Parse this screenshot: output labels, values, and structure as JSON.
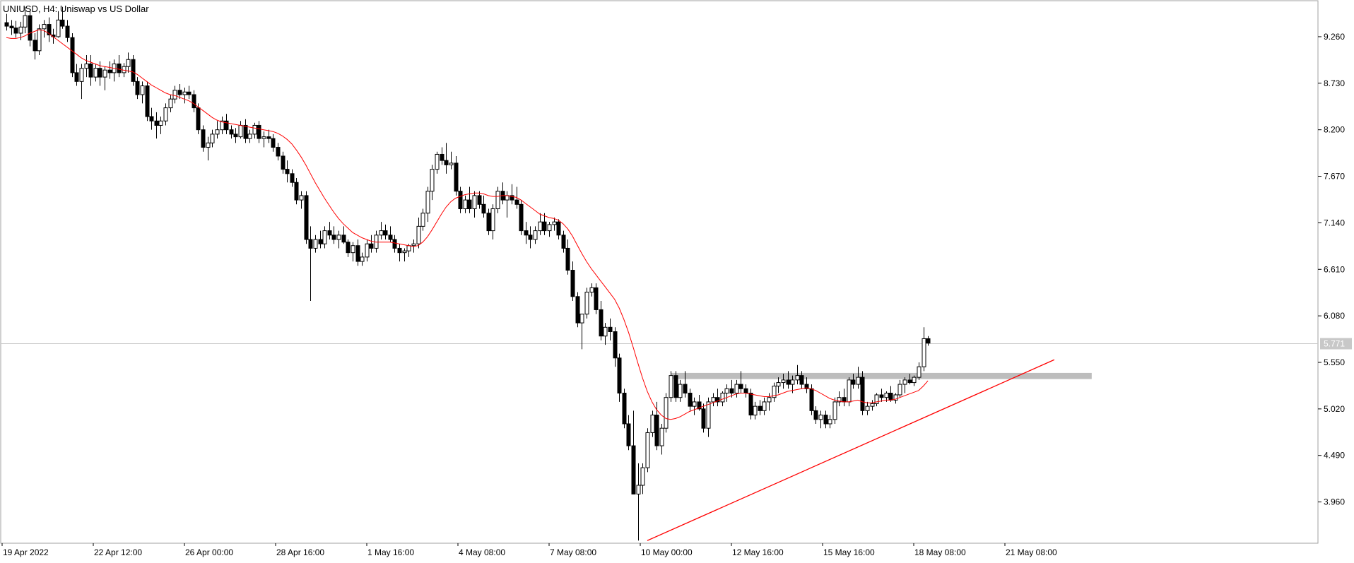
{
  "header": {
    "symbol_label": "UNIUSD, H4:  Uniswap vs US Dollar"
  },
  "price_tag": {
    "value": "5.771",
    "background": "#c8c8c8"
  },
  "colors": {
    "bull_body": "#ffffff",
    "bear_body": "#000000",
    "candle_outline": "#000000",
    "moving_average": "#ff0000",
    "trendline": "#ff0000",
    "resistance_zone": "#bdbdbd",
    "price_line": "#c8c8c8"
  },
  "chart_data": {
    "type": "candlestick",
    "title": "UNIUSD, H4:  Uniswap vs US Dollar",
    "ylim": [
      3.49,
      9.67
    ],
    "y_ticks": [
      "9.260",
      "8.730",
      "8.200",
      "7.670",
      "7.140",
      "6.610",
      "6.080",
      "5.550",
      "5.020",
      "4.490",
      "3.960"
    ],
    "x_ticks": [
      "19 Apr 2022",
      "22 Apr 12:00",
      "26 Apr 00:00",
      "28 Apr 16:00",
      "1 May 16:00",
      "4 May 08:00",
      "7 May 08:00",
      "10 May 00:00",
      "12 May 16:00",
      "15 May 16:00",
      "18 May 08:00",
      "21 May 08:00"
    ],
    "last_price": 5.771,
    "grid": false,
    "candles": [
      [
        9.42,
        9.52,
        9.33,
        9.38
      ],
      [
        9.38,
        9.45,
        9.28,
        9.36
      ],
      [
        9.36,
        9.44,
        9.25,
        9.3
      ],
      [
        9.3,
        9.43,
        9.22,
        9.37
      ],
      [
        9.37,
        9.6,
        9.3,
        9.5
      ],
      [
        9.5,
        9.55,
        9.15,
        9.22
      ],
      [
        9.22,
        9.3,
        9.0,
        9.1
      ],
      [
        9.1,
        9.4,
        9.05,
        9.35
      ],
      [
        9.35,
        9.45,
        9.25,
        9.4
      ],
      [
        9.4,
        9.48,
        9.2,
        9.28
      ],
      [
        9.28,
        9.35,
        9.18,
        9.26
      ],
      [
        9.26,
        9.55,
        9.25,
        9.45
      ],
      [
        9.45,
        9.6,
        9.35,
        9.38
      ],
      [
        9.38,
        9.45,
        9.2,
        9.25
      ],
      [
        9.25,
        9.3,
        8.8,
        8.85
      ],
      [
        8.85,
        8.95,
        8.7,
        8.75
      ],
      [
        8.75,
        8.95,
        8.55,
        8.9
      ],
      [
        8.9,
        9.05,
        8.8,
        8.95
      ],
      [
        8.95,
        9.05,
        8.7,
        8.8
      ],
      [
        8.8,
        8.95,
        8.75,
        8.9
      ],
      [
        8.9,
        8.98,
        8.7,
        8.8
      ],
      [
        8.8,
        8.92,
        8.65,
        8.88
      ],
      [
        8.88,
        8.98,
        8.78,
        8.85
      ],
      [
        8.85,
        9.0,
        8.75,
        8.95
      ],
      [
        8.95,
        9.05,
        8.8,
        8.85
      ],
      [
        8.85,
        8.96,
        8.8,
        8.92
      ],
      [
        8.92,
        9.08,
        8.85,
        9.0
      ],
      [
        9.0,
        9.05,
        8.7,
        8.75
      ],
      [
        8.75,
        8.8,
        8.55,
        8.6
      ],
      [
        8.6,
        8.75,
        8.5,
        8.7
      ],
      [
        8.7,
        8.75,
        8.3,
        8.35
      ],
      [
        8.35,
        8.45,
        8.2,
        8.3
      ],
      [
        8.3,
        8.4,
        8.1,
        8.25
      ],
      [
        8.25,
        8.35,
        8.15,
        8.3
      ],
      [
        8.3,
        8.5,
        8.25,
        8.45
      ],
      [
        8.45,
        8.6,
        8.4,
        8.55
      ],
      [
        8.55,
        8.7,
        8.5,
        8.65
      ],
      [
        8.65,
        8.72,
        8.55,
        8.6
      ],
      [
        8.6,
        8.68,
        8.5,
        8.63
      ],
      [
        8.63,
        8.7,
        8.55,
        8.6
      ],
      [
        8.6,
        8.65,
        8.4,
        8.45
      ],
      [
        8.45,
        8.5,
        8.15,
        8.2
      ],
      [
        8.2,
        8.25,
        7.95,
        8.0
      ],
      [
        8.0,
        8.12,
        7.85,
        8.05
      ],
      [
        8.05,
        8.2,
        8.0,
        8.15
      ],
      [
        8.15,
        8.3,
        8.1,
        8.2
      ],
      [
        8.2,
        8.35,
        8.15,
        8.3
      ],
      [
        8.3,
        8.38,
        8.15,
        8.2
      ],
      [
        8.2,
        8.25,
        8.1,
        8.15
      ],
      [
        8.15,
        8.22,
        8.05,
        8.12
      ],
      [
        8.12,
        8.3,
        8.1,
        8.25
      ],
      [
        8.25,
        8.32,
        8.05,
        8.1
      ],
      [
        8.1,
        8.2,
        8.05,
        8.15
      ],
      [
        8.15,
        8.28,
        8.1,
        8.25
      ],
      [
        8.25,
        8.3,
        8.05,
        8.1
      ],
      [
        8.1,
        8.18,
        8.0,
        8.12
      ],
      [
        8.12,
        8.2,
        8.05,
        8.1
      ],
      [
        8.1,
        8.15,
        7.95,
        8.0
      ],
      [
        8.0,
        8.05,
        7.85,
        7.9
      ],
      [
        7.9,
        7.95,
        7.7,
        7.75
      ],
      [
        7.75,
        7.85,
        7.6,
        7.7
      ],
      [
        7.7,
        7.75,
        7.55,
        7.6
      ],
      [
        7.6,
        7.65,
        7.35,
        7.4
      ],
      [
        7.4,
        7.5,
        7.3,
        7.45
      ],
      [
        7.45,
        7.5,
        6.9,
        6.95
      ],
      [
        6.95,
        7.1,
        6.25,
        6.85
      ],
      [
        6.85,
        7.0,
        6.8,
        6.95
      ],
      [
        6.95,
        7.05,
        6.85,
        6.9
      ],
      [
        6.9,
        7.1,
        6.85,
        7.05
      ],
      [
        7.05,
        7.15,
        6.95,
        7.0
      ],
      [
        7.0,
        7.1,
        6.9,
        6.95
      ],
      [
        6.95,
        7.05,
        6.85,
        7.0
      ],
      [
        7.0,
        7.1,
        6.9,
        6.92
      ],
      [
        6.92,
        6.95,
        6.75,
        6.8
      ],
      [
        6.8,
        6.92,
        6.7,
        6.88
      ],
      [
        6.88,
        6.95,
        6.65,
        6.7
      ],
      [
        6.7,
        6.8,
        6.65,
        6.75
      ],
      [
        6.75,
        6.95,
        6.7,
        6.9
      ],
      [
        6.9,
        7.0,
        6.8,
        6.85
      ],
      [
        6.85,
        7.05,
        6.8,
        7.0
      ],
      [
        7.0,
        7.15,
        6.95,
        7.05
      ],
      [
        7.05,
        7.12,
        6.95,
        7.0
      ],
      [
        7.0,
        7.1,
        6.92,
        6.95
      ],
      [
        6.95,
        7.0,
        6.8,
        6.85
      ],
      [
        6.85,
        6.9,
        6.7,
        6.8
      ],
      [
        6.8,
        6.85,
        6.7,
        6.82
      ],
      [
        6.82,
        6.9,
        6.75,
        6.88
      ],
      [
        6.88,
        6.95,
        6.8,
        6.9
      ],
      [
        6.9,
        7.2,
        6.85,
        7.1
      ],
      [
        7.1,
        7.3,
        7.05,
        7.25
      ],
      [
        7.25,
        7.55,
        7.15,
        7.5
      ],
      [
        7.5,
        7.8,
        7.4,
        7.75
      ],
      [
        7.75,
        7.95,
        7.7,
        7.92
      ],
      [
        7.92,
        8.0,
        7.8,
        7.85
      ],
      [
        7.85,
        8.05,
        7.7,
        7.8
      ],
      [
        7.8,
        7.95,
        7.75,
        7.82
      ],
      [
        7.82,
        7.9,
        7.45,
        7.5
      ],
      [
        7.5,
        7.55,
        7.25,
        7.3
      ],
      [
        7.3,
        7.45,
        7.25,
        7.4
      ],
      [
        7.4,
        7.55,
        7.25,
        7.3
      ],
      [
        7.3,
        7.5,
        7.2,
        7.45
      ],
      [
        7.45,
        7.5,
        7.3,
        7.35
      ],
      [
        7.35,
        7.45,
        7.2,
        7.25
      ],
      [
        7.25,
        7.3,
        7.0,
        7.05
      ],
      [
        7.05,
        7.35,
        6.95,
        7.3
      ],
      [
        7.3,
        7.55,
        7.25,
        7.5
      ],
      [
        7.5,
        7.6,
        7.35,
        7.4
      ],
      [
        7.4,
        7.5,
        7.2,
        7.45
      ],
      [
        7.45,
        7.58,
        7.35,
        7.4
      ],
      [
        7.4,
        7.55,
        7.3,
        7.35
      ],
      [
        7.35,
        7.4,
        7.0,
        7.05
      ],
      [
        7.05,
        7.15,
        6.9,
        7.0
      ],
      [
        7.0,
        7.1,
        6.85,
        6.95
      ],
      [
        6.95,
        7.1,
        6.9,
        7.05
      ],
      [
        7.05,
        7.25,
        7.0,
        7.15
      ],
      [
        7.15,
        7.25,
        7.0,
        7.05
      ],
      [
        7.05,
        7.15,
        6.98,
        7.12
      ],
      [
        7.12,
        7.2,
        7.05,
        7.15
      ],
      [
        7.15,
        7.18,
        6.95,
        7.0
      ],
      [
        7.0,
        7.05,
        6.8,
        6.85
      ],
      [
        6.85,
        6.95,
        6.55,
        6.6
      ],
      [
        6.6,
        6.7,
        6.25,
        6.3
      ],
      [
        6.3,
        6.35,
        5.95,
        6.0
      ],
      [
        6.0,
        6.05,
        5.7,
        6.1
      ],
      [
        6.1,
        6.4,
        6.05,
        6.35
      ],
      [
        6.35,
        6.45,
        6.3,
        6.4
      ],
      [
        6.4,
        6.45,
        6.1,
        6.15
      ],
      [
        6.15,
        6.25,
        5.8,
        5.85
      ],
      [
        5.85,
        6.0,
        5.75,
        5.95
      ],
      [
        5.95,
        6.05,
        5.8,
        5.9
      ],
      [
        5.9,
        5.95,
        5.5,
        5.6
      ],
      [
        5.6,
        5.65,
        5.1,
        5.2
      ],
      [
        5.2,
        5.25,
        4.8,
        4.85
      ],
      [
        4.85,
        4.95,
        4.55,
        4.6
      ],
      [
        4.6,
        5.0,
        4.1,
        4.05
      ],
      [
        4.05,
        4.4,
        3.52,
        4.15
      ],
      [
        4.15,
        4.4,
        4.05,
        4.35
      ],
      [
        4.35,
        4.8,
        4.3,
        4.75
      ],
      [
        4.75,
        5.0,
        4.7,
        4.95
      ],
      [
        4.95,
        5.1,
        4.55,
        4.6
      ],
      [
        4.6,
        4.85,
        4.5,
        4.8
      ],
      [
        4.8,
        5.2,
        4.75,
        5.15
      ],
      [
        5.15,
        5.45,
        5.1,
        5.4
      ],
      [
        5.4,
        5.45,
        5.1,
        5.15
      ],
      [
        5.15,
        5.35,
        5.1,
        5.3
      ],
      [
        5.3,
        5.45,
        5.15,
        5.2
      ],
      [
        5.2,
        5.25,
        5.0,
        5.05
      ],
      [
        5.05,
        5.15,
        4.95,
        5.1
      ],
      [
        5.1,
        5.18,
        5.0,
        5.02
      ],
      [
        5.02,
        5.08,
        4.75,
        4.8
      ],
      [
        4.8,
        5.15,
        4.7,
        5.1
      ],
      [
        5.1,
        5.2,
        5.05,
        5.15
      ],
      [
        5.15,
        5.25,
        5.05,
        5.1
      ],
      [
        5.1,
        5.22,
        5.05,
        5.2
      ],
      [
        5.2,
        5.3,
        5.1,
        5.25
      ],
      [
        5.25,
        5.35,
        5.15,
        5.2
      ],
      [
        5.2,
        5.35,
        5.15,
        5.3
      ],
      [
        5.3,
        5.45,
        5.2,
        5.25
      ],
      [
        5.25,
        5.3,
        5.15,
        5.2
      ],
      [
        5.2,
        5.25,
        4.9,
        4.95
      ],
      [
        4.95,
        5.1,
        4.9,
        5.05
      ],
      [
        5.05,
        5.12,
        4.95,
        5.0
      ],
      [
        5.0,
        5.15,
        4.95,
        5.1
      ],
      [
        5.1,
        5.2,
        5.0,
        5.15
      ],
      [
        5.15,
        5.32,
        5.1,
        5.28
      ],
      [
        5.28,
        5.38,
        5.2,
        5.32
      ],
      [
        5.32,
        5.42,
        5.25,
        5.35
      ],
      [
        5.35,
        5.45,
        5.25,
        5.3
      ],
      [
        5.3,
        5.4,
        5.2,
        5.35
      ],
      [
        5.35,
        5.52,
        5.3,
        5.4
      ],
      [
        5.4,
        5.45,
        5.25,
        5.3
      ],
      [
        5.3,
        5.38,
        5.2,
        5.25
      ],
      [
        5.25,
        5.3,
        4.95,
        5.0
      ],
      [
        5.0,
        5.05,
        4.85,
        4.9
      ],
      [
        4.9,
        5.0,
        4.8,
        4.95
      ],
      [
        4.95,
        5.0,
        4.8,
        4.85
      ],
      [
        4.85,
        4.95,
        4.8,
        4.9
      ],
      [
        4.9,
        5.15,
        4.85,
        5.1
      ],
      [
        5.1,
        5.22,
        5.05,
        5.15
      ],
      [
        5.15,
        5.25,
        5.05,
        5.1
      ],
      [
        5.1,
        5.38,
        5.05,
        5.35
      ],
      [
        5.35,
        5.42,
        5.25,
        5.3
      ],
      [
        5.3,
        5.5,
        5.25,
        5.38
      ],
      [
        5.38,
        5.45,
        4.95,
        5.0
      ],
      [
        5.0,
        5.1,
        4.95,
        5.05
      ],
      [
        5.05,
        5.12,
        5.0,
        5.08
      ],
      [
        5.08,
        5.2,
        5.05,
        5.18
      ],
      [
        5.18,
        5.25,
        5.1,
        5.15
      ],
      [
        5.15,
        5.22,
        5.1,
        5.2
      ],
      [
        5.2,
        5.28,
        5.1,
        5.12
      ],
      [
        5.12,
        5.2,
        5.08,
        5.18
      ],
      [
        5.18,
        5.35,
        5.15,
        5.3
      ],
      [
        5.3,
        5.38,
        5.2,
        5.35
      ],
      [
        5.35,
        5.42,
        5.3,
        5.32
      ],
      [
        5.32,
        5.4,
        5.28,
        5.38
      ],
      [
        5.38,
        5.55,
        5.35,
        5.5
      ],
      [
        5.5,
        5.95,
        5.45,
        5.82
      ],
      [
        5.82,
        5.85,
        5.74,
        5.77
      ]
    ],
    "moving_average": [
      9.25,
      9.24,
      9.24,
      9.25,
      9.27,
      9.3,
      9.32,
      9.34,
      9.33,
      9.3,
      9.26,
      9.22,
      9.18,
      9.14,
      9.1,
      9.06,
      9.02,
      8.99,
      8.97,
      8.95,
      8.93,
      8.92,
      8.91,
      8.9,
      8.89,
      8.88,
      8.87,
      8.86,
      8.83,
      8.79,
      8.75,
      8.71,
      8.68,
      8.65,
      8.62,
      8.6,
      8.59,
      8.57,
      8.55,
      8.53,
      8.5,
      8.46,
      8.42,
      8.38,
      8.34,
      8.31,
      8.29,
      8.28,
      8.27,
      8.26,
      8.25,
      8.24,
      8.23,
      8.22,
      8.21,
      8.2,
      8.19,
      8.18,
      8.16,
      8.13,
      8.09,
      8.04,
      7.97,
      7.89,
      7.8,
      7.7,
      7.6,
      7.51,
      7.42,
      7.34,
      7.26,
      7.19,
      7.13,
      7.08,
      7.03,
      7.0,
      6.97,
      6.95,
      6.93,
      6.92,
      6.92,
      6.92,
      6.92,
      6.91,
      6.9,
      6.89,
      6.88,
      6.87,
      6.88,
      6.92,
      6.98,
      7.06,
      7.15,
      7.24,
      7.32,
      7.38,
      7.42,
      7.44,
      7.46,
      7.47,
      7.48,
      7.48,
      7.47,
      7.45,
      7.44,
      7.44,
      7.45,
      7.45,
      7.44,
      7.43,
      7.4,
      7.36,
      7.32,
      7.28,
      7.24,
      7.22,
      7.2,
      7.19,
      7.17,
      7.13,
      7.07,
      6.99,
      6.89,
      6.79,
      6.7,
      6.62,
      6.55,
      6.48,
      6.41,
      6.34,
      6.27,
      6.17,
      6.04,
      5.89,
      5.72,
      5.54,
      5.37,
      5.22,
      5.1,
      5.01,
      4.95,
      4.91,
      4.9,
      4.91,
      4.93,
      4.96,
      4.99,
      5.01,
      5.03,
      5.05,
      5.07,
      5.09,
      5.11,
      5.13,
      5.15,
      5.17,
      5.19,
      5.2,
      5.2,
      5.19,
      5.18,
      5.17,
      5.16,
      5.16,
      5.17,
      5.18,
      5.2,
      5.22,
      5.23,
      5.24,
      5.25,
      5.26,
      5.25,
      5.23,
      5.2,
      5.17,
      5.14,
      5.12,
      5.11,
      5.1,
      5.1,
      5.11,
      5.12,
      5.1,
      5.09,
      5.09,
      5.1,
      5.11,
      5.12,
      5.12,
      5.13,
      5.15,
      5.17,
      5.19,
      5.21,
      5.23,
      5.28,
      5.34
    ],
    "trendline": {
      "start": [
        137,
        3.52
      ],
      "end": [
        224,
        5.58
      ]
    },
    "resistance_zone": {
      "start_index": 142,
      "end_index": 232,
      "low": 5.36,
      "high": 5.43
    }
  }
}
